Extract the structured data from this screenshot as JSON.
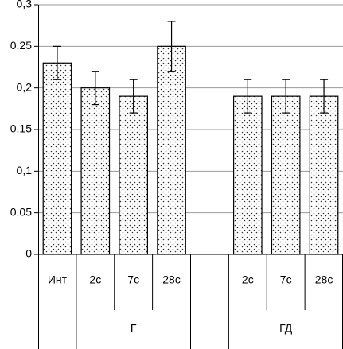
{
  "chart_data": {
    "type": "bar",
    "categories": [
      "Инт",
      "2с",
      "7с",
      "28с",
      null,
      "2с",
      "7с",
      "28с"
    ],
    "category_groups": [
      null,
      "Г",
      "Г",
      "Г",
      null,
      "ГД",
      "ГД",
      "ГД"
    ],
    "values": [
      0.23,
      0.2,
      0.19,
      0.25,
      null,
      0.19,
      0.19,
      0.19
    ],
    "errors": [
      0.02,
      0.02,
      0.02,
      0.03,
      null,
      0.02,
      0.02,
      0.02
    ],
    "ylim": [
      0,
      0.3
    ],
    "yticks": [
      0,
      {
        "value": 0.05,
        "label": "0,05"
      },
      {
        "value": 0.1,
        "label": "0,1"
      },
      {
        "value": 0.15,
        "label": "0,15"
      },
      {
        "value": 0.2,
        "label": "0,2"
      },
      {
        "value": 0.25,
        "label": "0,25"
      },
      {
        "value": 0.3,
        "label": "0,3"
      }
    ],
    "grid": true
  }
}
